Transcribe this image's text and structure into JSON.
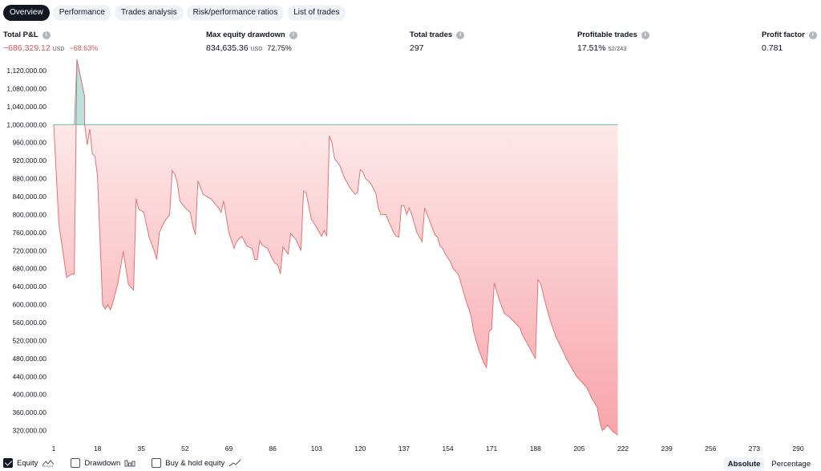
{
  "tabs": [
    {
      "label": "Overview",
      "active": true
    },
    {
      "label": "Performance",
      "active": false
    },
    {
      "label": "Trades analysis",
      "active": false
    },
    {
      "label": "Risk/performance ratios",
      "active": false
    },
    {
      "label": "List of trades",
      "active": false
    }
  ],
  "metrics": {
    "total_pnl": {
      "title": "Total P&L",
      "value": "−686,329.12",
      "unit": "USD",
      "percent": "−68.63%"
    },
    "max_drawdown": {
      "title": "Max equity drawdown",
      "value": "834,635.36",
      "unit": "USD",
      "percent": "72.75%"
    },
    "total_trades": {
      "title": "Total trades",
      "value": "297"
    },
    "profitable_trades": {
      "title": "Profitable trades",
      "value": "17.51%",
      "ratio": "52/243"
    },
    "profit_factor": {
      "title": "Profit factor",
      "value": "0.781"
    }
  },
  "info_icon": "i",
  "legend": {
    "equity": {
      "label": "Equity",
      "checked": true
    },
    "drawdown": {
      "label": "Drawdown",
      "checked": false
    },
    "buy_hold": {
      "label": "Buy & hold equity",
      "checked": false
    }
  },
  "mode": {
    "absolute": "Absolute",
    "percentage": "Percentage",
    "selected": "Absolute"
  },
  "colors": {
    "loss_line": "#e57373",
    "loss_fill": "#f8a5aa",
    "profit_line": "#5bb5a2",
    "profit_fill": "#b9e3da"
  },
  "chart_data": {
    "type": "area",
    "baseline": 1000000,
    "y_ticks": [
      320000,
      360000,
      400000,
      440000,
      480000,
      520000,
      560000,
      600000,
      640000,
      680000,
      720000,
      760000,
      800000,
      840000,
      880000,
      920000,
      960000,
      1000000,
      1040000,
      1080000,
      1120000
    ],
    "y_tick_labels": [
      "320,000.00",
      "360,000.00",
      "400,000.00",
      "440,000.00",
      "480,000.00",
      "520,000.00",
      "560,000.00",
      "600,000.00",
      "640,000.00",
      "680,000.00",
      "720,000.00",
      "760,000.00",
      "800,000.00",
      "840,000.00",
      "880,000.00",
      "920,000.00",
      "960,000.00",
      "1,000,000.00",
      "1,040,000.00",
      "1,080,000.00",
      "1,120,000.00"
    ],
    "x_ticks": [
      1,
      18,
      35,
      52,
      69,
      86,
      103,
      120,
      137,
      154,
      171,
      188,
      205,
      222,
      239,
      256,
      273,
      290
    ],
    "ylim": [
      305000,
      1145000
    ],
    "xlim": [
      1,
      297
    ],
    "series": [
      {
        "points": [
          [
            1,
            1000000
          ],
          [
            3,
            780000
          ],
          [
            6,
            660000
          ],
          [
            8,
            668000
          ],
          [
            9,
            668000
          ],
          [
            10,
            1145000
          ],
          [
            13,
            1062000
          ],
          [
            13,
            1000000
          ],
          [
            14,
            955000
          ],
          [
            15,
            990000
          ],
          [
            16,
            935000
          ],
          [
            17,
            930000
          ],
          [
            18,
            885000
          ],
          [
            19,
            740000
          ],
          [
            20,
            600000
          ],
          [
            21,
            590000
          ],
          [
            22,
            600000
          ],
          [
            23,
            588000
          ],
          [
            24,
            605000
          ],
          [
            26,
            650000
          ],
          [
            28,
            718000
          ],
          [
            30,
            645000
          ],
          [
            32,
            632000
          ],
          [
            33,
            835000
          ],
          [
            34,
            812000
          ],
          [
            36,
            805000
          ],
          [
            38,
            750000
          ],
          [
            40,
            720000
          ],
          [
            41,
            700000
          ],
          [
            42,
            760000
          ],
          [
            44,
            785000
          ],
          [
            46,
            800000
          ],
          [
            47,
            898000
          ],
          [
            48,
            890000
          ],
          [
            49,
            870000
          ],
          [
            50,
            830000
          ],
          [
            52,
            815000
          ],
          [
            54,
            805000
          ],
          [
            55,
            775000
          ],
          [
            56,
            755000
          ],
          [
            57,
            875000
          ],
          [
            59,
            845000
          ],
          [
            62,
            835000
          ],
          [
            65,
            815000
          ],
          [
            66,
            805000
          ],
          [
            67,
            830000
          ],
          [
            69,
            760000
          ],
          [
            71,
            725000
          ],
          [
            72,
            740000
          ],
          [
            74,
            752000
          ],
          [
            76,
            730000
          ],
          [
            78,
            725000
          ],
          [
            79,
            700000
          ],
          [
            80,
            700000
          ],
          [
            81,
            742000
          ],
          [
            82,
            732000
          ],
          [
            84,
            725000
          ],
          [
            86,
            700000
          ],
          [
            87,
            692000
          ],
          [
            88,
            688000
          ],
          [
            89,
            668000
          ],
          [
            90,
            728000
          ],
          [
            92,
            712000
          ],
          [
            93,
            758000
          ],
          [
            95,
            745000
          ],
          [
            97,
            720000
          ],
          [
            98,
            852000
          ],
          [
            99,
            848000
          ],
          [
            101,
            790000
          ],
          [
            103,
            772000
          ],
          [
            105,
            752000
          ],
          [
            106,
            765000
          ],
          [
            107,
            752000
          ],
          [
            108,
            975000
          ],
          [
            109,
            960000
          ],
          [
            110,
            925000
          ],
          [
            112,
            910000
          ],
          [
            113,
            895000
          ],
          [
            114,
            880000
          ],
          [
            116,
            860000
          ],
          [
            118,
            845000
          ],
          [
            119,
            850000
          ],
          [
            120,
            900000
          ],
          [
            121,
            895000
          ],
          [
            122,
            880000
          ],
          [
            124,
            870000
          ],
          [
            126,
            848000
          ],
          [
            127,
            815000
          ],
          [
            128,
            800000
          ],
          [
            130,
            800000
          ],
          [
            131,
            785000
          ],
          [
            133,
            760000
          ],
          [
            134,
            752000
          ],
          [
            135,
            750000
          ],
          [
            136,
            820000
          ],
          [
            137,
            820000
          ],
          [
            138,
            800000
          ],
          [
            139,
            815000
          ],
          [
            140,
            800000
          ],
          [
            142,
            760000
          ],
          [
            144,
            740000
          ],
          [
            145,
            815000
          ],
          [
            146,
            800000
          ],
          [
            148,
            770000
          ],
          [
            149,
            755000
          ],
          [
            150,
            750000
          ],
          [
            151,
            730000
          ],
          [
            152,
            725000
          ],
          [
            153,
            712000
          ],
          [
            155,
            695000
          ],
          [
            156,
            680000
          ],
          [
            158,
            668000
          ],
          [
            159,
            650000
          ],
          [
            160,
            630000
          ],
          [
            161,
            610000
          ],
          [
            163,
            575000
          ],
          [
            164,
            540000
          ],
          [
            165,
            520000
          ],
          [
            166,
            500000
          ],
          [
            168,
            470000
          ],
          [
            169,
            460000
          ],
          [
            170,
            540000
          ],
          [
            171,
            545000
          ],
          [
            172,
            648000
          ],
          [
            174,
            610000
          ],
          [
            176,
            580000
          ],
          [
            178,
            572000
          ],
          [
            180,
            560000
          ],
          [
            182,
            548000
          ],
          [
            183,
            532000
          ],
          [
            185,
            512000
          ],
          [
            187,
            490000
          ],
          [
            188,
            480000
          ],
          [
            189,
            655000
          ],
          [
            190,
            648000
          ],
          [
            192,
            600000
          ],
          [
            194,
            560000
          ],
          [
            196,
            528000
          ],
          [
            198,
            505000
          ],
          [
            200,
            480000
          ],
          [
            202,
            460000
          ],
          [
            204,
            440000
          ],
          [
            206,
            428000
          ],
          [
            208,
            415000
          ],
          [
            210,
            390000
          ],
          [
            212,
            372000
          ],
          [
            213,
            340000
          ],
          [
            214,
            320000
          ],
          [
            215,
            325000
          ],
          [
            216,
            332000
          ],
          [
            218,
            318000
          ],
          [
            220,
            310000
          ]
        ]
      }
    ]
  }
}
